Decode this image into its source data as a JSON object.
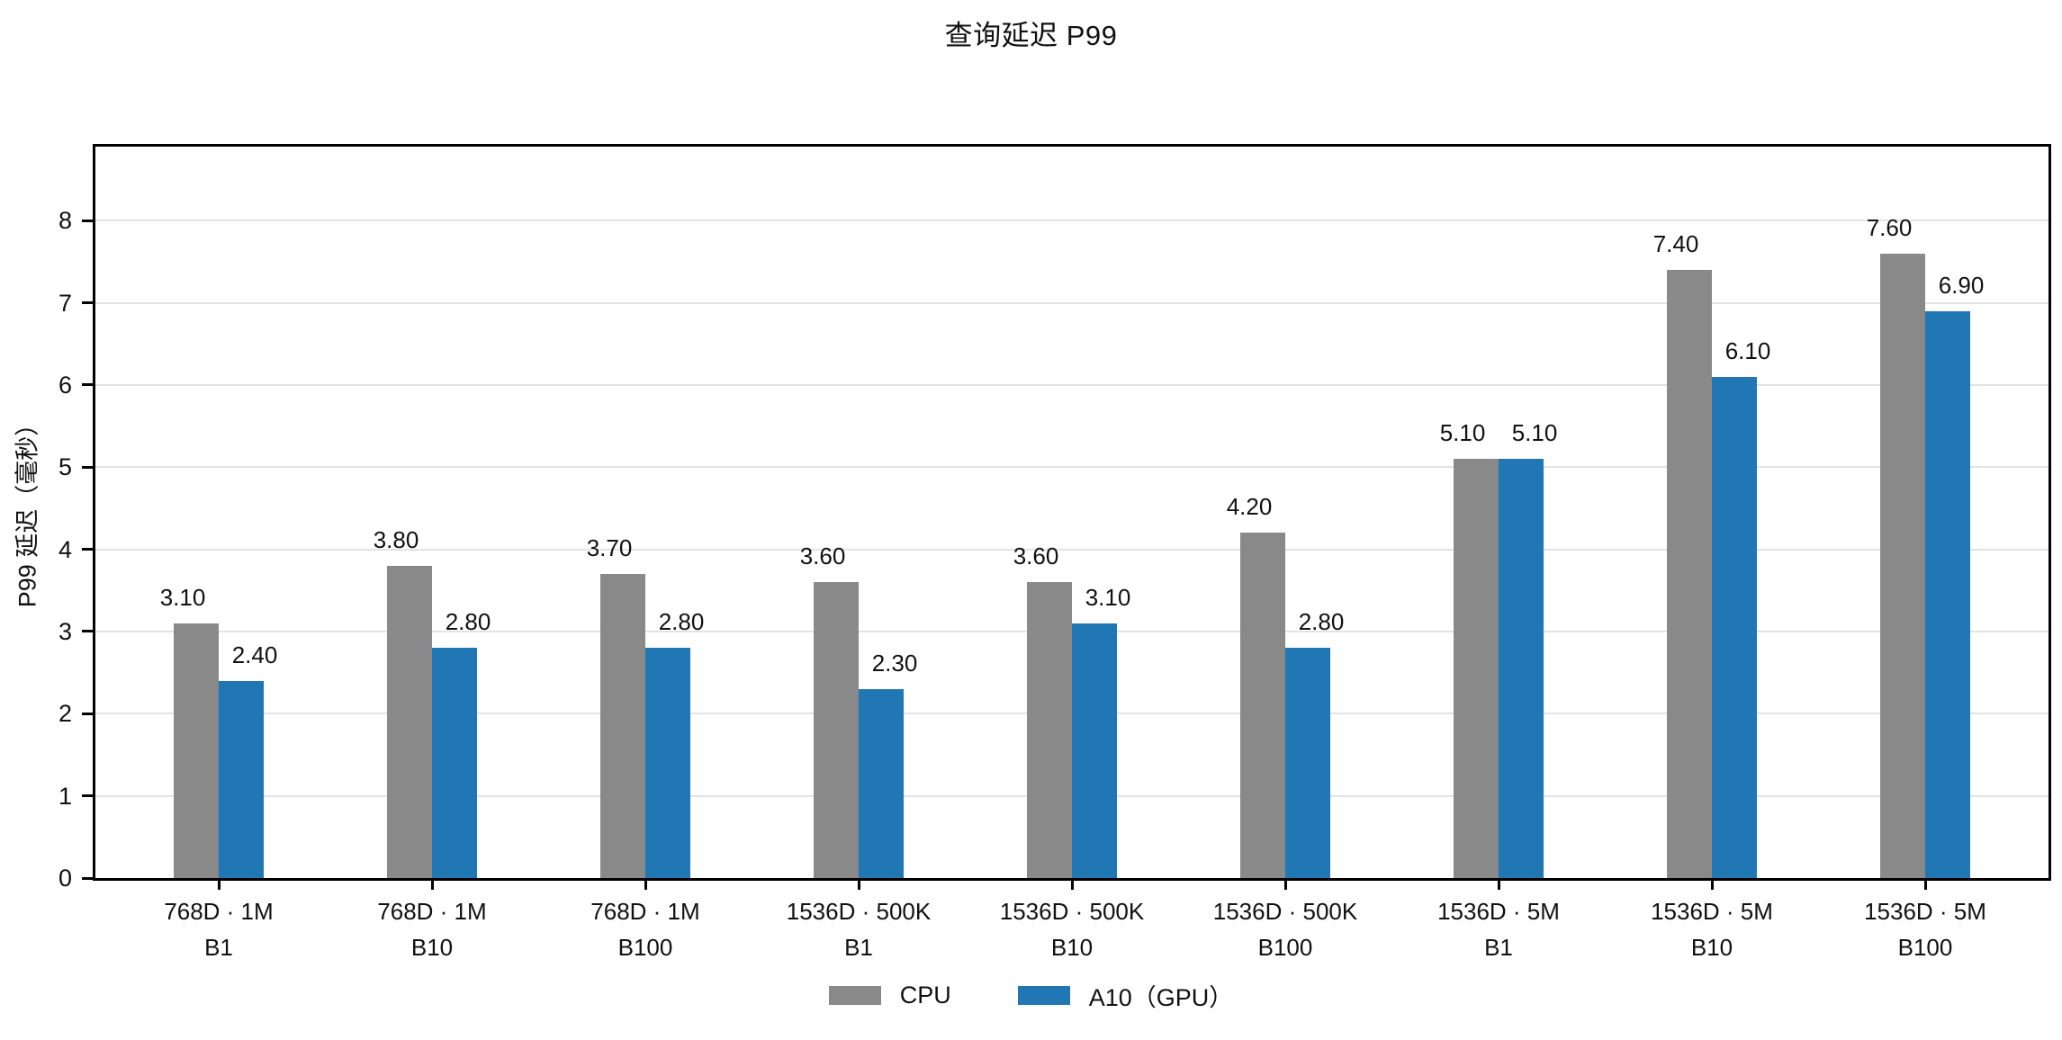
{
  "title": "查询延迟 P99",
  "colors": {
    "cpu": "#898989",
    "gpu": "#2077b4",
    "grid": "#e3e3e3",
    "axis": "#000000",
    "text": "#111111"
  },
  "legend": {
    "items": [
      {
        "label": "CPU",
        "color": "#898989"
      },
      {
        "label": "A10（GPU）",
        "color": "#2077b4"
      }
    ]
  },
  "chart_data": {
    "type": "bar",
    "title": "查询延迟 P99",
    "xlabel": "",
    "ylabel": "P99 延迟（毫秒）",
    "ylim": [
      0,
      8.9
    ],
    "yticks": [
      0,
      1,
      2,
      3,
      4,
      5,
      6,
      7,
      8
    ],
    "grid": true,
    "legend_position": "bottom",
    "value_decimals": 2,
    "categories": [
      {
        "line1": "768D · 1M",
        "line2": "B1"
      },
      {
        "line1": "768D · 1M",
        "line2": "B10"
      },
      {
        "line1": "768D · 1M",
        "line2": "B100"
      },
      {
        "line1": "1536D · 500K",
        "line2": "B1"
      },
      {
        "line1": "1536D · 500K",
        "line2": "B10"
      },
      {
        "line1": "1536D · 500K",
        "line2": "B100"
      },
      {
        "line1": "1536D · 5M",
        "line2": "B1"
      },
      {
        "line1": "1536D · 5M",
        "line2": "B10"
      },
      {
        "line1": "1536D · 5M",
        "line2": "B100"
      }
    ],
    "series": [
      {
        "name": "CPU",
        "color": "#898989",
        "values": [
          3.1,
          3.8,
          3.7,
          3.6,
          3.6,
          4.2,
          5.1,
          7.4,
          7.6
        ]
      },
      {
        "name": "A10（GPU）",
        "color": "#2077b4",
        "values": [
          2.4,
          2.8,
          2.8,
          2.3,
          3.1,
          2.8,
          5.1,
          6.1,
          6.9
        ]
      }
    ]
  }
}
